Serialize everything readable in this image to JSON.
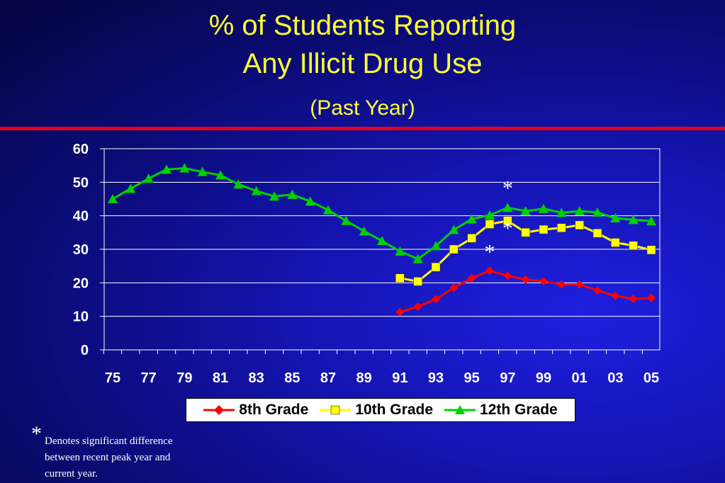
{
  "slide": {
    "title_line1": "% of Students Reporting",
    "title_line2": "Any Illicit Drug Use",
    "subtitle": "(Past Year)",
    "footnote_star": "*",
    "footnote_text": "Denotes significant difference between recent peak year and current year.",
    "colors": {
      "title": "#ffff33",
      "rule": "#e8001a",
      "background": "#1414b0"
    }
  },
  "chart_data": {
    "type": "line",
    "title": "",
    "xlabel": "",
    "ylabel": "",
    "x": [
      1975,
      1976,
      1977,
      1978,
      1979,
      1980,
      1981,
      1982,
      1983,
      1984,
      1985,
      1986,
      1987,
      1988,
      1989,
      1990,
      1991,
      1992,
      1993,
      1994,
      1995,
      1996,
      1997,
      1998,
      1999,
      2000,
      2001,
      2002,
      2003,
      2004,
      2005
    ],
    "x_tick_labels": [
      "75",
      "77",
      "79",
      "81",
      "83",
      "85",
      "87",
      "89",
      "91",
      "93",
      "95",
      "97",
      "99",
      "01",
      "03",
      "05"
    ],
    "y_ticks": [
      "0",
      "10",
      "20",
      "30",
      "40",
      "50",
      "60"
    ],
    "ylim": [
      0,
      60
    ],
    "grid": "horizontal",
    "legend_position": "bottom",
    "series": [
      {
        "name": "8th Grade",
        "color": "#ff0000",
        "marker": "diamond",
        "values": [
          null,
          null,
          null,
          null,
          null,
          null,
          null,
          null,
          null,
          null,
          null,
          null,
          null,
          null,
          null,
          null,
          11.3,
          12.9,
          15.1,
          18.5,
          21.4,
          23.6,
          22.1,
          21.0,
          20.5,
          19.5,
          19.5,
          17.7,
          16.1,
          15.2,
          15.5
        ]
      },
      {
        "name": "10th Grade",
        "color": "#ffff00",
        "marker": "square",
        "values": [
          null,
          null,
          null,
          null,
          null,
          null,
          null,
          null,
          null,
          null,
          null,
          null,
          null,
          null,
          null,
          null,
          21.4,
          20.4,
          24.7,
          30.0,
          33.3,
          37.5,
          38.5,
          35.0,
          35.9,
          36.4,
          37.2,
          34.8,
          32.0,
          31.1,
          29.8
        ]
      },
      {
        "name": "12th Grade",
        "color": "#00d000",
        "marker": "triangle",
        "values": [
          45.0,
          48.1,
          51.1,
          53.8,
          54.2,
          53.1,
          52.1,
          49.4,
          47.4,
          45.8,
          46.3,
          44.3,
          41.7,
          38.5,
          35.4,
          32.5,
          29.4,
          27.1,
          31.0,
          35.8,
          39.0,
          40.2,
          42.4,
          41.4,
          42.1,
          40.9,
          41.4,
          41.0,
          39.3,
          38.8,
          38.4
        ]
      }
    ],
    "annotations": [
      {
        "text": "*",
        "x": 1997,
        "y": 50,
        "note": "12th grade significant difference"
      },
      {
        "text": "*",
        "x": 1997,
        "y": 38,
        "note": "10th grade significant difference"
      },
      {
        "text": "*",
        "x": 1996,
        "y": 31,
        "note": "8th grade significant difference"
      }
    ]
  }
}
